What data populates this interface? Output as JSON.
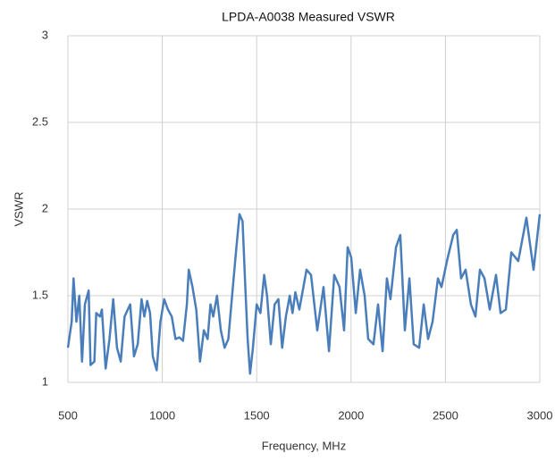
{
  "chart_data": {
    "type": "line",
    "title": "LPDA-A0038 Measured VSWR",
    "x_label": "Frequency, MHz",
    "y_label": "VSWR",
    "x": [
      500,
      520,
      530,
      545,
      560,
      575,
      590,
      610,
      620,
      640,
      650,
      670,
      680,
      700,
      720,
      740,
      760,
      780,
      800,
      830,
      850,
      870,
      890,
      905,
      920,
      935,
      950,
      970,
      990,
      1010,
      1030,
      1050,
      1070,
      1090,
      1110,
      1130,
      1140,
      1160,
      1180,
      1200,
      1220,
      1240,
      1255,
      1270,
      1290,
      1310,
      1330,
      1350,
      1370,
      1390,
      1409,
      1425,
      1440,
      1452,
      1465,
      1480,
      1500,
      1520,
      1540,
      1555,
      1575,
      1595,
      1615,
      1635,
      1655,
      1675,
      1690,
      1705,
      1726,
      1764,
      1788,
      1821,
      1854,
      1883,
      1911,
      1939,
      1963,
      1982,
      2001,
      2025,
      2048,
      2072,
      2091,
      2119,
      2143,
      2167,
      2190,
      2209,
      2238,
      2261,
      2285,
      2309,
      2332,
      2361,
      2385,
      2408,
      2432,
      2460,
      2479,
      2508,
      2541,
      2560,
      2583,
      2607,
      2635,
      2659,
      2683,
      2707,
      2735,
      2768,
      2792,
      2820,
      2849,
      2886,
      2929,
      2967,
      3000
    ],
    "series": [
      {
        "name": "VSWR",
        "color": "#4a7ebb",
        "values": [
          1.2,
          1.35,
          1.6,
          1.35,
          1.5,
          1.12,
          1.45,
          1.53,
          1.1,
          1.12,
          1.4,
          1.38,
          1.42,
          1.08,
          1.25,
          1.48,
          1.2,
          1.12,
          1.38,
          1.45,
          1.15,
          1.22,
          1.48,
          1.38,
          1.47,
          1.4,
          1.15,
          1.07,
          1.35,
          1.48,
          1.42,
          1.38,
          1.25,
          1.26,
          1.24,
          1.45,
          1.65,
          1.55,
          1.42,
          1.12,
          1.3,
          1.25,
          1.45,
          1.38,
          1.5,
          1.3,
          1.2,
          1.25,
          1.5,
          1.75,
          1.97,
          1.93,
          1.55,
          1.25,
          1.05,
          1.2,
          1.45,
          1.4,
          1.62,
          1.5,
          1.22,
          1.45,
          1.48,
          1.2,
          1.38,
          1.5,
          1.4,
          1.52,
          1.42,
          1.65,
          1.62,
          1.3,
          1.55,
          1.18,
          1.62,
          1.55,
          1.3,
          1.78,
          1.72,
          1.4,
          1.65,
          1.5,
          1.25,
          1.22,
          1.45,
          1.18,
          1.6,
          1.48,
          1.78,
          1.85,
          1.3,
          1.6,
          1.22,
          1.2,
          1.45,
          1.25,
          1.35,
          1.6,
          1.55,
          1.7,
          1.85,
          1.88,
          1.6,
          1.65,
          1.45,
          1.38,
          1.65,
          1.6,
          1.42,
          1.62,
          1.4,
          1.42,
          1.75,
          1.7,
          1.95,
          1.65,
          1.97
        ]
      }
    ],
    "xlim": [
      500,
      3000
    ],
    "xticks": [
      500,
      1000,
      1500,
      2000,
      2500,
      3000
    ],
    "ylim": [
      1,
      3
    ],
    "yticks": [
      1,
      1.5,
      2,
      2.5,
      3
    ],
    "grid": true
  }
}
